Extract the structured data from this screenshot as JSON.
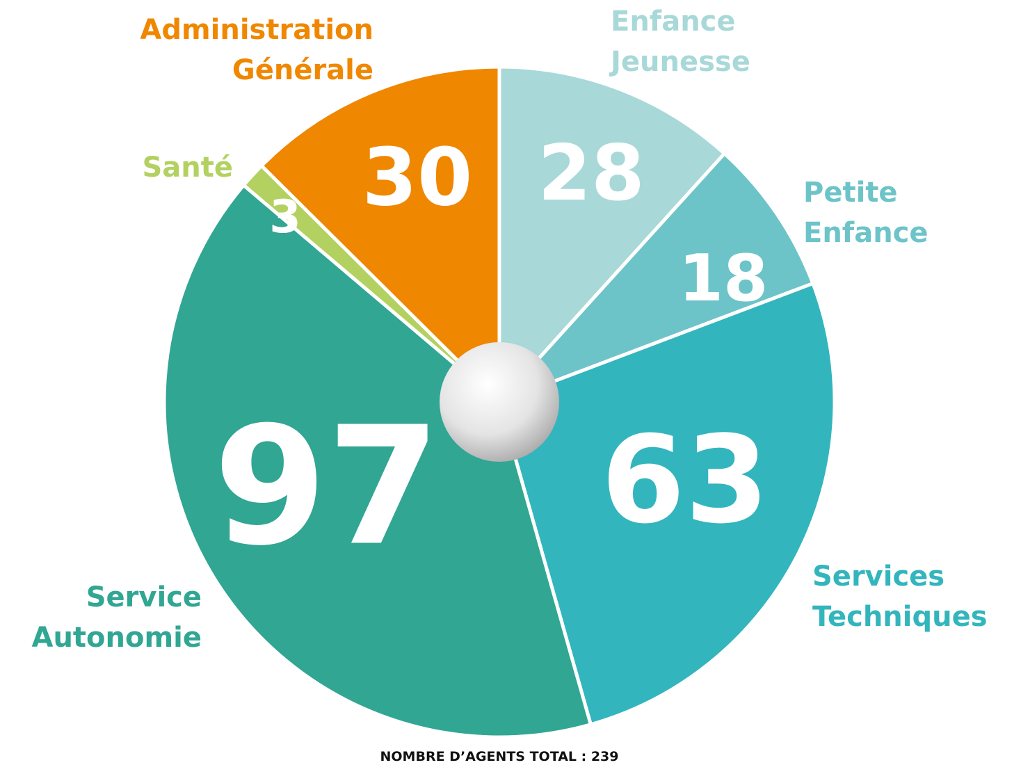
{
  "chart_data": {
    "type": "pie",
    "categories": [
      "Enfance Jeunesse",
      "Petite Enfance",
      "Services Techniques",
      "Service Autonomie",
      "Santé",
      "Administration Générale"
    ],
    "values": [
      28,
      18,
      63,
      97,
      3,
      30
    ],
    "colors": [
      "#a8d8d8",
      "#6dc4c8",
      "#33b5bd",
      "#30a693",
      "#b3d160",
      "#f08700"
    ],
    "footer": "NOMBRE D’AGENTS TOTAL : 239"
  }
}
